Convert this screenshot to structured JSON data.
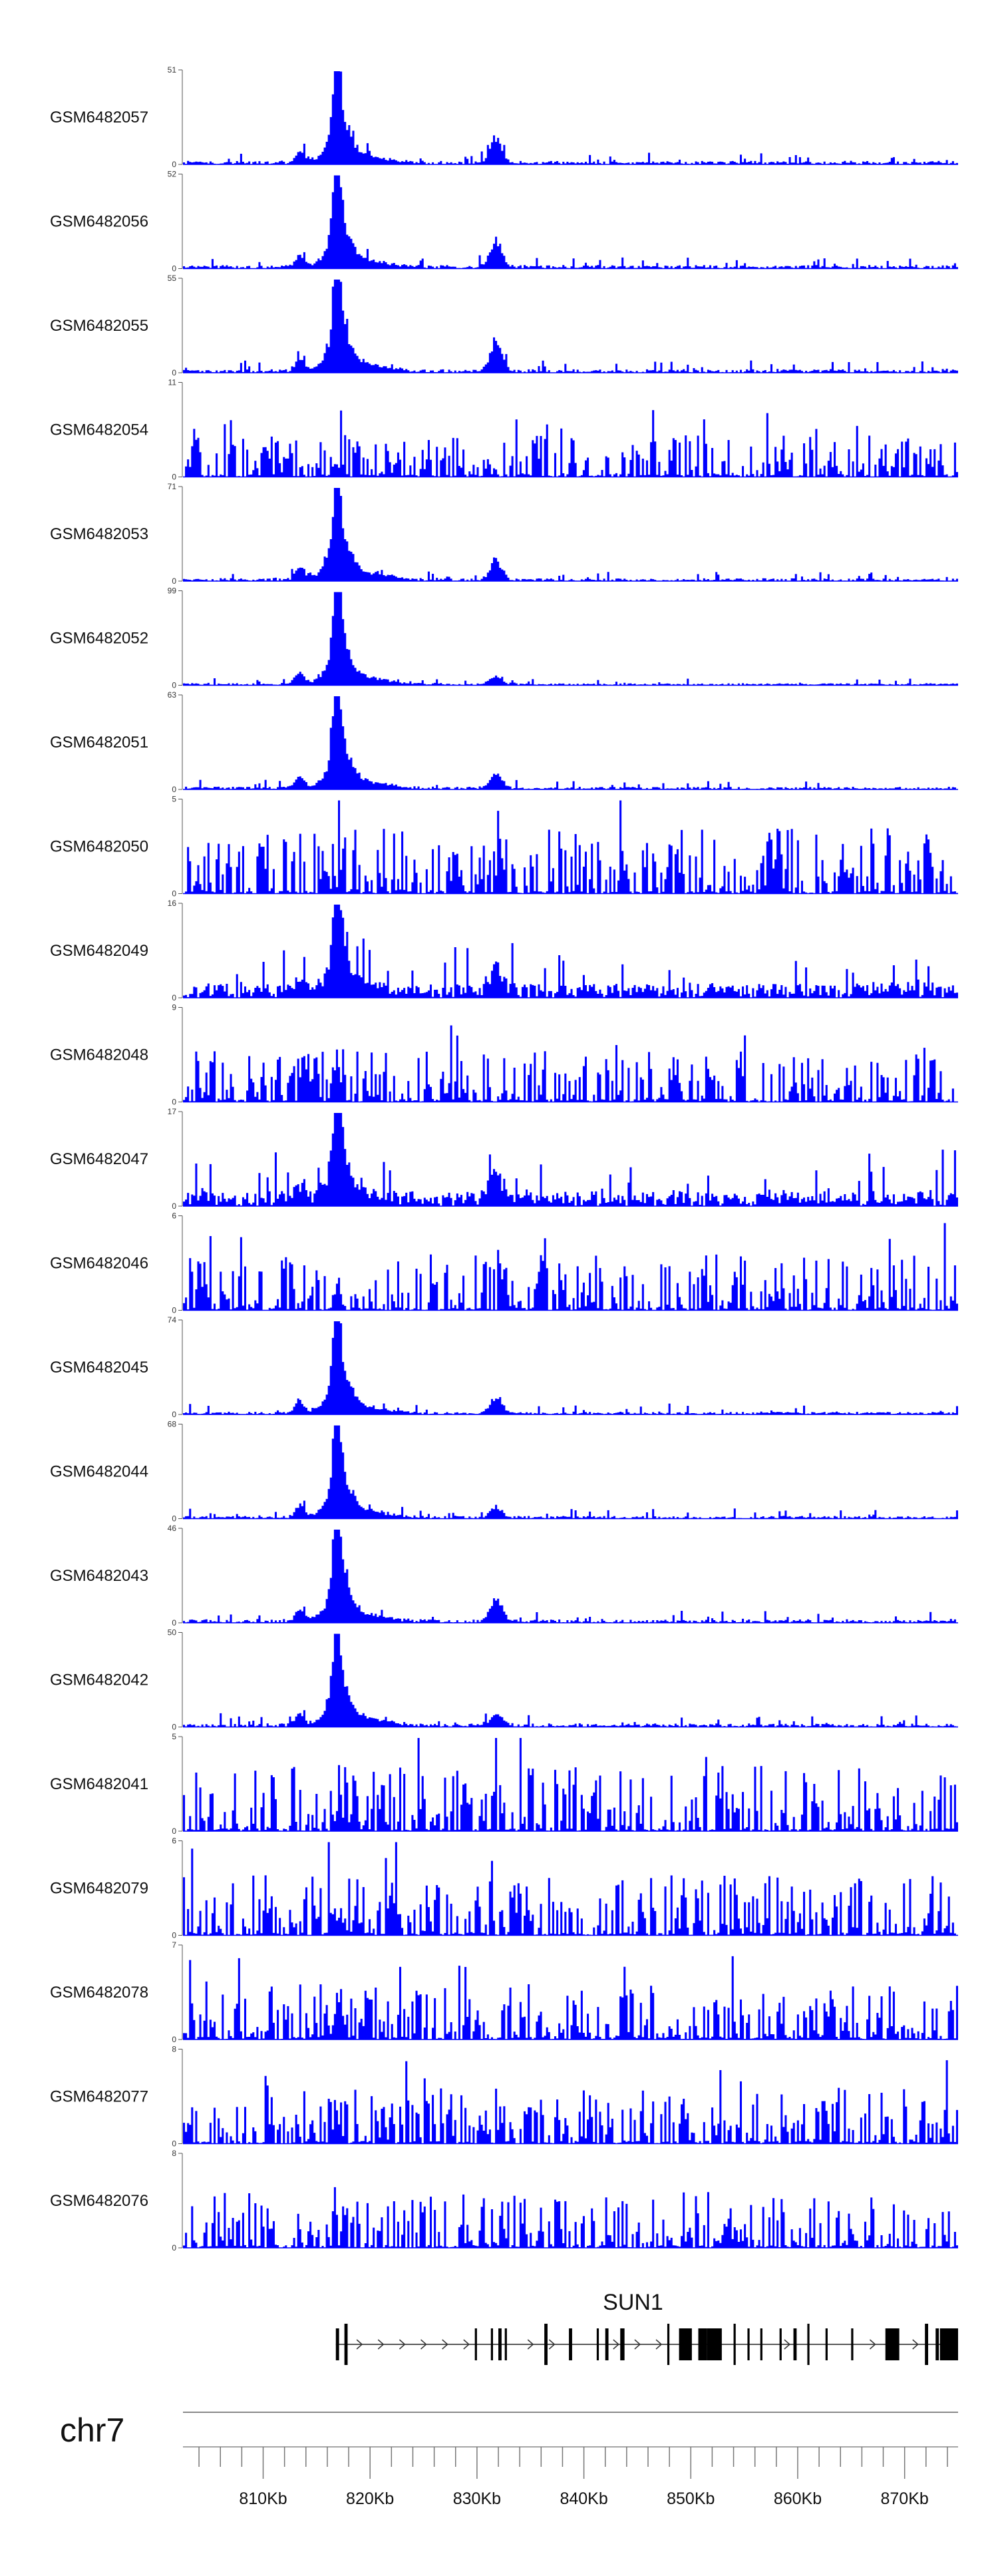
{
  "chart_data": {
    "type": "area",
    "title": "",
    "chromosome": "chr7",
    "x_unit": "Kb",
    "xlim": [
      802.5,
      875.0
    ],
    "ticks_major": [
      810,
      820,
      830,
      840,
      850,
      860,
      870
    ],
    "tick_labels": [
      "810Kb",
      "820Kb",
      "830Kb",
      "840Kb",
      "850Kb",
      "860Kb",
      "870Kb"
    ],
    "ticks_minor_step": 2,
    "series_color": "#0000ff",
    "bins": 380,
    "tracks": [
      {
        "name": "GSM6482057",
        "ymax": 51,
        "ymin": 0,
        "profile": "peak",
        "noise": 0.05,
        "peak": 1.0,
        "second": 0.28
      },
      {
        "name": "GSM6482056",
        "ymax": 52,
        "ymin": 0,
        "profile": "peak",
        "noise": 0.05,
        "peak": 1.0,
        "second": 0.32
      },
      {
        "name": "GSM6482055",
        "ymax": 55,
        "ymin": 0,
        "profile": "peak",
        "noise": 0.05,
        "peak": 1.0,
        "second": 0.35
      },
      {
        "name": "GSM6482054",
        "ymax": 11,
        "ymin": 0,
        "profile": "noisy",
        "noise": 0.45,
        "peak": 0.95,
        "second": 0.4
      },
      {
        "name": "GSM6482053",
        "ymax": 71,
        "ymin": 0,
        "profile": "peak",
        "noise": 0.04,
        "peak": 1.0,
        "second": 0.22
      },
      {
        "name": "GSM6482052",
        "ymax": 99,
        "ymin": 0,
        "profile": "peak",
        "noise": 0.03,
        "peak": 1.0,
        "second": 0.1
      },
      {
        "name": "GSM6482051",
        "ymax": 63,
        "ymin": 0,
        "profile": "peak",
        "noise": 0.04,
        "peak": 1.0,
        "second": 0.18
      },
      {
        "name": "GSM6482050",
        "ymax": 5,
        "ymin": 0,
        "profile": "noisy",
        "noise": 0.7,
        "peak": 0.5,
        "second": 0.3
      },
      {
        "name": "GSM6482049",
        "ymax": 16,
        "ymin": 0,
        "profile": "peak",
        "noise": 0.22,
        "peak": 1.0,
        "second": 0.3
      },
      {
        "name": "GSM6482048",
        "ymax": 9,
        "ymin": 0,
        "profile": "noisy",
        "noise": 0.55,
        "peak": 0.95,
        "second": 0.45
      },
      {
        "name": "GSM6482047",
        "ymax": 17,
        "ymin": 0,
        "profile": "peak",
        "noise": 0.22,
        "peak": 1.0,
        "second": 0.35
      },
      {
        "name": "GSM6482046",
        "ymax": 6,
        "ymin": 0,
        "profile": "noisy",
        "noise": 0.6,
        "peak": 0.5,
        "second": 0.35
      },
      {
        "name": "GSM6482045",
        "ymax": 74,
        "ymin": 0,
        "profile": "peak",
        "noise": 0.04,
        "peak": 1.0,
        "second": 0.2
      },
      {
        "name": "GSM6482044",
        "ymax": 68,
        "ymin": 0,
        "profile": "peak",
        "noise": 0.04,
        "peak": 1.0,
        "second": 0.12
      },
      {
        "name": "GSM6482043",
        "ymax": 46,
        "ymin": 0,
        "profile": "peak",
        "noise": 0.05,
        "peak": 1.0,
        "second": 0.28
      },
      {
        "name": "GSM6482042",
        "ymax": 50,
        "ymin": 0,
        "profile": "peak",
        "noise": 0.05,
        "peak": 1.0,
        "second": 0.15
      },
      {
        "name": "GSM6482041",
        "ymax": 5,
        "ymin": 0,
        "profile": "noisy",
        "noise": 0.7,
        "peak": 0.7,
        "second": 0.4
      },
      {
        "name": "GSM6482079",
        "ymax": 6,
        "ymin": 0,
        "profile": "noisy",
        "noise": 0.65,
        "peak": 0.9,
        "second": 0.5
      },
      {
        "name": "GSM6482078",
        "ymax": 7,
        "ymin": 0,
        "profile": "noisy",
        "noise": 0.6,
        "peak": 0.9,
        "second": 0.5
      },
      {
        "name": "GSM6482077",
        "ymax": 8,
        "ymin": 0,
        "profile": "noisy",
        "noise": 0.6,
        "peak": 0.9,
        "second": 0.5
      },
      {
        "name": "GSM6482076",
        "ymax": 8,
        "ymin": 0,
        "profile": "noisy",
        "noise": 0.6,
        "peak": 0.8,
        "second": 0.5
      }
    ],
    "gene": {
      "name": "SUN1",
      "start_kb": 816.8,
      "end_kb": 875.0,
      "strand": "+",
      "exons_kb": [
        [
          816.8,
          817.1
        ],
        [
          817.6,
          817.9
        ],
        [
          829.8,
          830.0
        ],
        [
          831.3,
          831.5
        ],
        [
          832.0,
          832.3
        ],
        [
          832.6,
          832.8
        ],
        [
          836.3,
          836.6
        ],
        [
          838.6,
          838.9
        ],
        [
          841.2,
          841.4
        ],
        [
          842.0,
          842.3
        ],
        [
          843.4,
          843.8
        ],
        [
          847.8,
          848.0
        ],
        [
          848.9,
          850.1
        ],
        [
          850.7,
          851.5
        ],
        [
          851.5,
          852.9
        ],
        [
          854.0,
          854.2
        ],
        [
          855.3,
          855.5
        ],
        [
          856.5,
          856.7
        ],
        [
          858.3,
          858.5
        ],
        [
          859.6,
          859.9
        ],
        [
          860.9,
          861.1
        ],
        [
          862.6,
          862.8
        ],
        [
          865.0,
          865.2
        ],
        [
          868.2,
          869.5
        ],
        [
          871.9,
          872.2
        ],
        [
          872.9,
          873.2
        ],
        [
          873.3,
          875.0
        ]
      ]
    }
  }
}
